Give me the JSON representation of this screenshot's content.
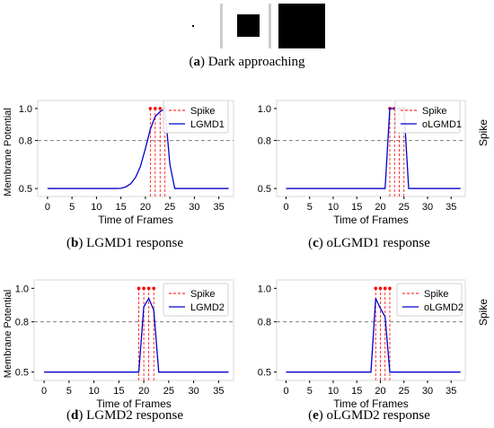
{
  "figure": {
    "panel_a": {
      "letter": "a",
      "caption": "Dark approaching",
      "frames": [
        "dot",
        "small-square",
        "large-square"
      ]
    },
    "ylabel": "Membrane Potential",
    "side_label": "Spike"
  },
  "chart_data": [
    {
      "id": "b",
      "type": "line",
      "caption_letter": "b",
      "caption": "LGMD1 response",
      "xlabel": "Time of Frames",
      "ylabel": "Membrane Potential",
      "xlim": [
        -2,
        38
      ],
      "ylim": [
        0.45,
        1.05
      ],
      "xticks": [
        0,
        5,
        10,
        15,
        20,
        25,
        30,
        35
      ],
      "yticks": [
        0.5,
        0.8,
        1.0
      ],
      "threshold": 0.8,
      "legend_position": "right",
      "series": [
        {
          "name": "LGMD1",
          "color": "#0000cc",
          "x": [
            0,
            1,
            2,
            3,
            4,
            5,
            6,
            7,
            8,
            9,
            10,
            11,
            12,
            13,
            14,
            15,
            16,
            17,
            18,
            19,
            20,
            21,
            22,
            23,
            24,
            25,
            26,
            27,
            28,
            29,
            30,
            31,
            32,
            33,
            34,
            35,
            36,
            37
          ],
          "y": [
            0.5,
            0.5,
            0.5,
            0.5,
            0.5,
            0.5,
            0.5,
            0.5,
            0.5,
            0.5,
            0.5,
            0.5,
            0.5,
            0.5,
            0.5,
            0.501,
            0.51,
            0.53,
            0.57,
            0.64,
            0.75,
            0.87,
            0.95,
            0.98,
            1.0,
            0.65,
            0.5,
            0.5,
            0.5,
            0.5,
            0.5,
            0.5,
            0.5,
            0.5,
            0.5,
            0.5,
            0.5,
            0.5
          ]
        }
      ],
      "spikes": {
        "name": "Spike",
        "color": "#ff0000",
        "x": [
          21,
          22,
          23,
          24
        ]
      }
    },
    {
      "id": "c",
      "type": "line",
      "caption_letter": "c",
      "caption": "oLGMD1 response",
      "xlabel": "Time of Frames",
      "ylabel": "",
      "xlim": [
        -2,
        38
      ],
      "ylim": [
        0.45,
        1.05
      ],
      "xticks": [
        0,
        5,
        10,
        15,
        20,
        25,
        30,
        35
      ],
      "yticks": [
        0.5,
        0.8,
        1.0
      ],
      "threshold": 0.8,
      "legend_position": "top-right",
      "series": [
        {
          "name": "oLGMD1",
          "color": "#0000cc",
          "x": [
            0,
            21,
            22,
            23,
            24,
            25,
            26,
            37
          ],
          "y": [
            0.5,
            0.5,
            1.0,
            1.0,
            1.0,
            1.0,
            0.5,
            0.5
          ]
        }
      ],
      "spikes": {
        "name": "Spike",
        "color": "#ff0000",
        "x": [
          22,
          23,
          24,
          25
        ]
      }
    },
    {
      "id": "d",
      "type": "line",
      "caption_letter": "d",
      "caption": "LGMD2 response",
      "xlabel": "Time of Frames",
      "ylabel": "Membrane Potential",
      "xlim": [
        -2,
        38
      ],
      "ylim": [
        0.45,
        1.05
      ],
      "xticks": [
        0,
        5,
        10,
        15,
        20,
        25,
        30,
        35
      ],
      "yticks": [
        0.5,
        0.8,
        1.0
      ],
      "threshold": 0.8,
      "legend_position": "right",
      "series": [
        {
          "name": "LGMD2",
          "color": "#0000cc",
          "x": [
            0,
            19,
            20,
            21,
            22,
            23,
            37
          ],
          "y": [
            0.5,
            0.5,
            0.89,
            0.94,
            0.87,
            0.5,
            0.5
          ]
        }
      ],
      "spikes": {
        "name": "Spike",
        "color": "#ff0000",
        "x": [
          19,
          20,
          21,
          22
        ]
      }
    },
    {
      "id": "e",
      "type": "line",
      "caption_letter": "e",
      "caption": "oLGMD2 response",
      "xlabel": "Time of Frames",
      "ylabel": "",
      "xlim": [
        -2,
        38
      ],
      "ylim": [
        0.45,
        1.05
      ],
      "xticks": [
        0,
        5,
        10,
        15,
        20,
        25,
        30,
        35
      ],
      "yticks": [
        0.5,
        0.8,
        1.0
      ],
      "threshold": 0.8,
      "legend_position": "top-right",
      "series": [
        {
          "name": "oLGMD2",
          "color": "#0000cc",
          "x": [
            0,
            18,
            19,
            20,
            21,
            22,
            37
          ],
          "y": [
            0.5,
            0.5,
            0.94,
            0.88,
            0.83,
            0.5,
            0.5
          ]
        }
      ],
      "spikes": {
        "name": "Spike",
        "color": "#ff0000",
        "x": [
          19,
          20,
          21,
          22
        ]
      }
    }
  ]
}
